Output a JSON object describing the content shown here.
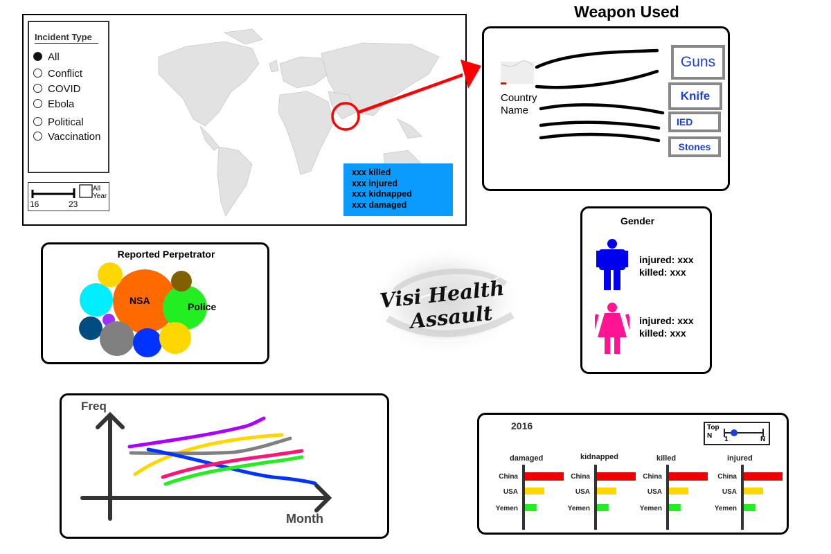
{
  "map": {
    "incident_type_title": "Incident Type",
    "incident_types": [
      {
        "label": "All",
        "selected": true
      },
      {
        "label": "Conflict",
        "selected": false
      },
      {
        "label": "COVID",
        "selected": false
      },
      {
        "label": "Ebola",
        "selected": false
      },
      {
        "label": "Political",
        "selected": false
      },
      {
        "label": "Vaccination",
        "selected": false
      }
    ],
    "year_slider": {
      "min_label": "16",
      "max_label": "23",
      "all_year_label_1": "All",
      "all_year_label_2": "Year"
    },
    "stats": [
      "xxx killed",
      "xxx injured",
      "xxx kidnapped",
      "xxx damaged"
    ],
    "highlight_color": "#ff0000",
    "stats_color": "#0b9bff"
  },
  "weapon": {
    "title": "Weapon Used",
    "country_label_1": "Country",
    "country_label_2": "Name",
    "weapons": [
      "Guns",
      "Knife",
      "IED",
      "Stones"
    ]
  },
  "perpetrator": {
    "title": "Reported Perpetrator",
    "bubbles": [
      {
        "label": "NSA",
        "color": "#ff6a00"
      },
      {
        "label": "Police",
        "color": "#22ee22"
      },
      {
        "label": "",
        "color": "#00eeff"
      },
      {
        "label": "",
        "color": "#ffd700"
      },
      {
        "label": "",
        "color": "#806000"
      },
      {
        "label": "",
        "color": "#004c80"
      },
      {
        "label": "",
        "color": "#9b30ff"
      },
      {
        "label": "",
        "color": "#808080"
      },
      {
        "label": "",
        "color": "#0033ff"
      },
      {
        "label": "",
        "color": "#ffd700"
      }
    ]
  },
  "logo": {
    "line1": "Visi Health",
    "line2": "Assault"
  },
  "gender": {
    "title": "Gender",
    "male": {
      "injured": "injured: xxx",
      "killed": "killed: xxx",
      "color": "#0000ee"
    },
    "female": {
      "injured": "injured: xxx",
      "killed": "killed: xxx",
      "color": "#ff1493"
    }
  },
  "freq_chart": {
    "ylabel": "Freq",
    "xlabel": "Month",
    "series_colors": [
      "#aa00ff",
      "#ffd700",
      "#808080",
      "#0033ff",
      "#ff1477",
      "#22ee22"
    ]
  },
  "bar_chart": {
    "year": "2016",
    "topn": {
      "title": "Top",
      "n_label": "N",
      "one": "1",
      "end": "N"
    }
  },
  "chart_data": {
    "type": "bar",
    "title": "2016",
    "categories": [
      "China",
      "USA",
      "Yemen"
    ],
    "series": [
      {
        "name": "damaged",
        "values": [
          100,
          50,
          30
        ]
      },
      {
        "name": "kidnapped",
        "values": [
          100,
          50,
          30
        ]
      },
      {
        "name": "killed",
        "values": [
          100,
          50,
          30
        ]
      },
      {
        "name": "injured",
        "values": [
          100,
          50,
          30
        ]
      }
    ],
    "colors": [
      "#ee0000",
      "#ffd700",
      "#22ee22"
    ]
  }
}
